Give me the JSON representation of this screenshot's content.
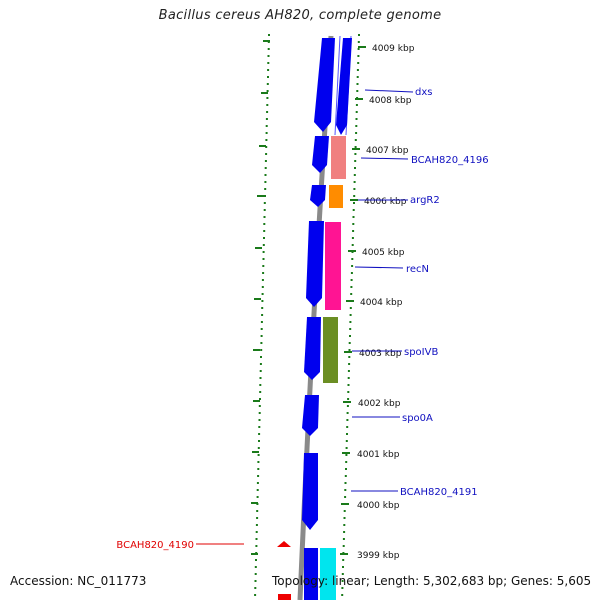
{
  "title": "Bacillus cereus AH820, complete genome",
  "footer": {
    "accession": "Accession: NC_011773",
    "summary": "Topology: linear; Length: 5,302,683 bp; Genes: 5,605"
  },
  "ticks": [
    "4009 kbp",
    "4008 kbp",
    "4007 kbp",
    "4006 kbp",
    "4005 kbp",
    "4004 kbp",
    "4003 kbp",
    "4002 kbp",
    "4001 kbp",
    "4000 kbp",
    "3999 kbp"
  ],
  "gene_labels": [
    {
      "name": "dxs",
      "color": "#1010c0"
    },
    {
      "name": "BCAH820_4196",
      "color": "#1010c0"
    },
    {
      "name": "argR2",
      "color": "#1010c0"
    },
    {
      "name": "recN",
      "color": "#1010c0"
    },
    {
      "name": "spoIVB",
      "color": "#1010c0"
    },
    {
      "name": "spo0A",
      "color": "#1010c0"
    },
    {
      "name": "BCAH820_4191",
      "color": "#1010c0"
    },
    {
      "name": "BCAH820_4190",
      "color": "#e00000"
    }
  ],
  "colors": {
    "forward_gene": "#0000ee",
    "backbone": "#8a8a8a",
    "gc_marks": "#1a7a1a",
    "pink": "#f08080",
    "orange": "#ff8c00",
    "magenta": "#ff1493",
    "olive": "#6b8e23",
    "cyan": "#00e5ee",
    "red": "#ee0000"
  }
}
